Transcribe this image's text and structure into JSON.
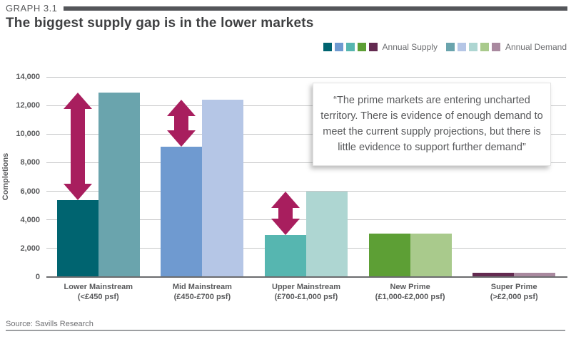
{
  "header": {
    "graph_label": "GRAPH 3.1",
    "title": "The biggest supply gap is in the lower markets"
  },
  "legend": {
    "supply_label": "Annual Supply",
    "demand_label": "Annual Demand"
  },
  "quote": "“The prime markets are entering uncharted territory. There is evidence of enough demand to meet the current supply projections, but there is little evidence to support further demand”",
  "source": "Source: Savills Research",
  "chart_data": {
    "type": "bar",
    "title": "The biggest supply gap is in the lower markets",
    "xlabel": "",
    "ylabel": "Completions",
    "ylim": [
      0,
      14000
    ],
    "ytick_interval": 2000,
    "ytick_labels": [
      "0",
      "2,000",
      "4,000",
      "6,000",
      "8,000",
      "10,000",
      "12,000",
      "14,000"
    ],
    "grid": true,
    "legend_position": "top-right",
    "categories": [
      "Lower Mainstream",
      "Mid Mainstream",
      "Upper Mainstream",
      "New Prime",
      "Super Prime"
    ],
    "category_sublabels": [
      "(<£450 psf)",
      "(£450-£700 psf)",
      "(£700-£1,000 psf)",
      "(£1,000-£2,000 psf)",
      "(>£2,000 psf)"
    ],
    "series": [
      {
        "name": "Annual Supply",
        "values": [
          5400,
          9100,
          2950,
          3050,
          300
        ],
        "colors": [
          "#006470",
          "#6f9ad0",
          "#56b6b0",
          "#5d9f35",
          "#632a50"
        ]
      },
      {
        "name": "Annual Demand",
        "values": [
          12900,
          12400,
          6000,
          3050,
          300
        ],
        "colors": [
          "#6aa4ad",
          "#b5c6e6",
          "#aed6d2",
          "#a9ca8c",
          "#a9899f"
        ]
      }
    ],
    "gap_arrows": {
      "color": "#a81e5e",
      "category_indexes": [
        0,
        1,
        2
      ],
      "meaning": "gap between annual supply and annual demand"
    }
  }
}
